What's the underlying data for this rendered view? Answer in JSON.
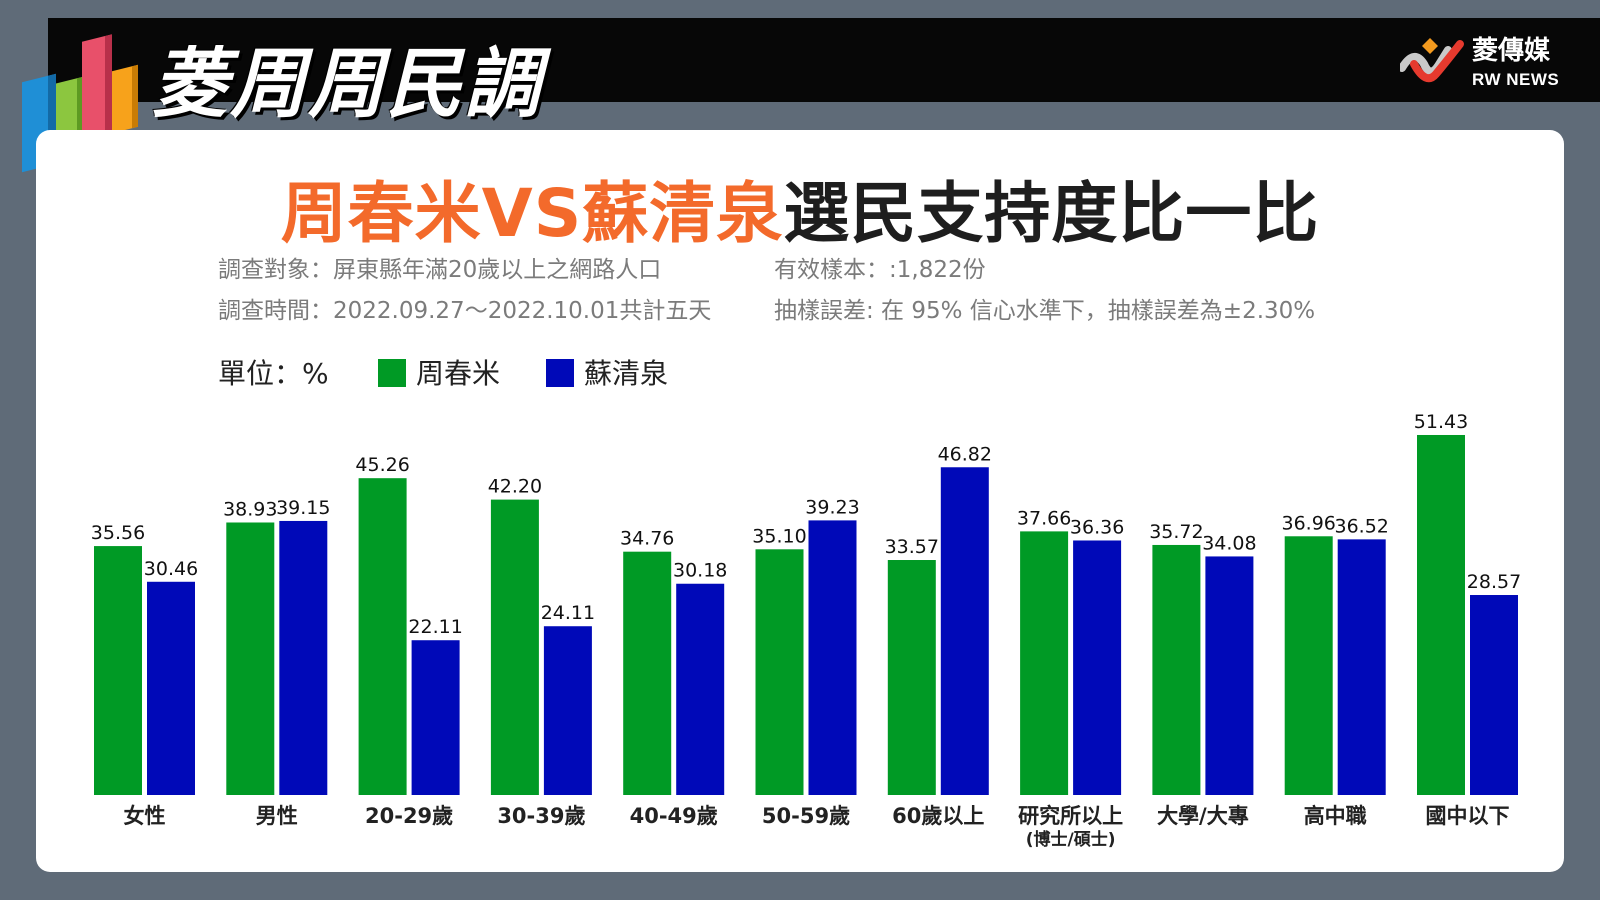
{
  "header": {
    "brand_title": "菱周周民調",
    "logo_zh": "菱傳媒",
    "logo_en": "RW NEWS"
  },
  "title": {
    "part1": "周春米VS蘇清泉",
    "part2": "選民支持度比一比"
  },
  "meta": {
    "survey_target": "調查對象：屏東縣年滿20歲以上之網路人口",
    "survey_period": "調查時間：2022.09.27～2022.10.01共計五天",
    "sample_size": "有效樣本：:1,822份",
    "margin_of_error": "抽樣誤差: 在 95% 信心水準下，抽樣誤差為±2.30%"
  },
  "legend": {
    "unit": "單位：%"
  },
  "colors": {
    "series1": "#009a25",
    "series2": "#0009b8",
    "accent_title": "#f36a2b"
  },
  "chart_data": {
    "type": "bar",
    "categories": [
      "女性",
      "男性",
      "20-29歲",
      "30-39歲",
      "40-49歲",
      "50-59歲",
      "60歲以上",
      "研究所以上",
      "大學/大專",
      "高中職",
      "國中以下"
    ],
    "category_sublabels": [
      "",
      "",
      "",
      "",
      "",
      "",
      "",
      "(博士/碩士)",
      "",
      "",
      ""
    ],
    "series": [
      {
        "name": "周春米",
        "values": [
          35.56,
          38.93,
          45.26,
          42.2,
          34.76,
          35.1,
          33.57,
          37.66,
          35.72,
          36.96,
          51.43
        ]
      },
      {
        "name": "蘇清泉",
        "values": [
          30.46,
          39.15,
          22.11,
          24.11,
          30.18,
          39.23,
          46.82,
          36.36,
          34.08,
          36.52,
          28.57
        ]
      }
    ],
    "ylim": [
      0,
      52
    ],
    "grid": false,
    "legend_position": "top-left"
  }
}
